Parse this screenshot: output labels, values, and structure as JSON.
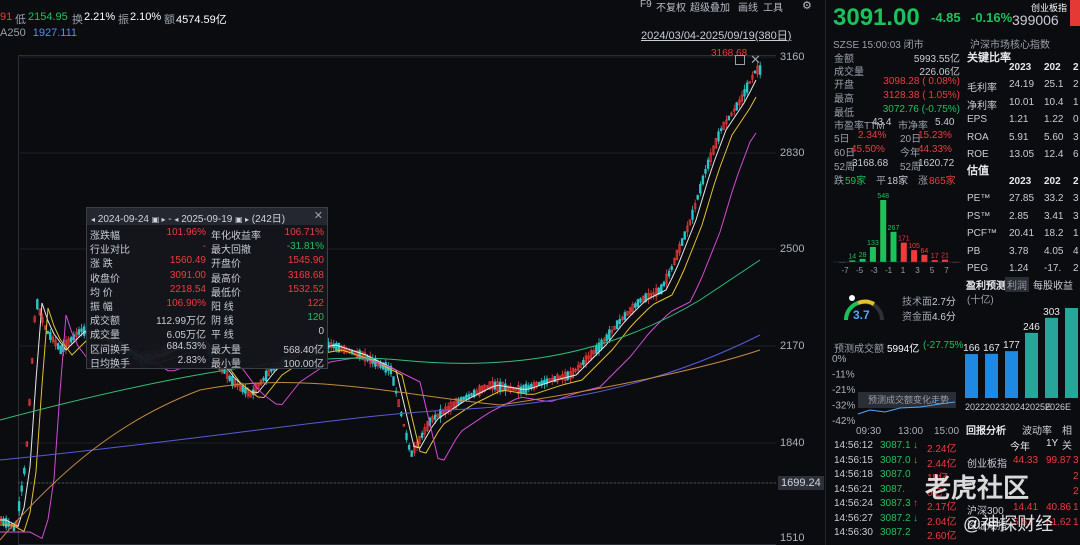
{
  "top": {
    "prefix": "91",
    "low_label": "低",
    "low_value": "2154.95",
    "turnover_label": "换",
    "turnover_value": "2.21%",
    "amplitude_label": "振",
    "amplitude_value": "2.10%",
    "amount_label": "额",
    "amount_value": "4574.59亿",
    "ma_label": "A250",
    "ma_value": "1927.111",
    "range_text": "2024/03/04-2025/09/19(380日)",
    "toolbar": [
      "F9",
      "不复权",
      "超级叠加",
      "画线",
      "工具"
    ]
  },
  "chart": {
    "y_ticks": [
      "3160",
      "2830",
      "2500",
      "2170",
      "1840",
      "1510"
    ],
    "crosshair_value": "1699.24",
    "max_label": "3168.68",
    "colors": {
      "up": "#f23a3a",
      "down": "#19c25a",
      "ma1": "#e8e8e8",
      "ma2": "#e6c229",
      "ma3": "#d64ad6",
      "ma4": "#2fbf7a",
      "ma5": "#5a5ad8"
    }
  },
  "popup": {
    "start_date": "2024-09-24",
    "end_date": "2025-09-19",
    "days": "(242日)",
    "rows": [
      {
        "l1": "涨跌幅",
        "v1": "101.96%",
        "l2": "年化收益率",
        "v2": "106.71%"
      },
      {
        "l1": "行业对比",
        "v1": "-",
        "l2": "最大回撤",
        "v2": "-31.81%"
      },
      {
        "l1": "涨    跌",
        "v1": "1560.49",
        "l2": "开盘价",
        "v2": "1545.90"
      },
      {
        "l1": "收盘价",
        "v1": "3091.00",
        "l2": "最高价",
        "v2": "3168.68"
      },
      {
        "l1": "均    价",
        "v1": "2218.54",
        "l2": "最低价",
        "v2": "1532.52"
      },
      {
        "l1": "振    幅",
        "v1": "106.90%",
        "l2": "阳    线",
        "v2": "122"
      },
      {
        "l1": "成交额",
        "v1": "112.99万亿",
        "l2": "阴    线",
        "v2": "120"
      },
      {
        "l1": "成交量",
        "v1": "6.05万亿",
        "l2": "平    线",
        "v2": "0"
      },
      {
        "l1": "区间换手",
        "v1": "684.53%",
        "l2": "最大量",
        "v2": "568.40亿"
      },
      {
        "l1": "日均换手",
        "v1": "2.83%",
        "l2": "最小量",
        "v2": "100.00亿"
      }
    ]
  },
  "quote": {
    "price": "3091.00",
    "change": "-4.85",
    "change_pct": "-0.16%",
    "board": "创业板指",
    "code": "399006",
    "exchange_time": "SZSE 15:00:03 闭市",
    "index_tag": "沪深市场核心指数",
    "amount_label": "金额",
    "amount": "5993.55亿",
    "volume_label": "成交量",
    "volume": "226.06亿",
    "open_label": "开盘",
    "open": "3098.28 ( 0.08%)",
    "high_label": "最高",
    "high": "3128.38 ( 1.05%)",
    "low_label": "最低",
    "low": "3072.76 (-0.75%)",
    "pe_label": "市盈率TTM",
    "pe": "43.4",
    "pb_label": "市净率",
    "pb": "5.40",
    "d5_label": "5日",
    "d5": "2.34%",
    "d20_label": "20日",
    "d20": "15.23%",
    "d60_label": "60日",
    "d60": "45.50%",
    "ytd_label": "今年",
    "ytd": "44.33%",
    "w52h_label": "52周",
    "w52h": "3168.68",
    "w52l_label": "52周",
    "w52l": "1620.72",
    "down_label": "跌",
    "down": "59家",
    "flat_label": "平",
    "flat": "18家",
    "up_label": "涨",
    "up": "865家"
  },
  "key_ratios": {
    "title": "关键比率",
    "years": [
      "2023",
      "202",
      "2"
    ],
    "rows": [
      {
        "name": "毛利率",
        "v": [
          "24.19",
          "25.1",
          "2"
        ]
      },
      {
        "name": "净利率",
        "v": [
          "10.01",
          "10.4",
          "1"
        ]
      },
      {
        "name": "EPS",
        "v": [
          "1.21",
          "1.22",
          "0"
        ]
      },
      {
        "name": "ROA",
        "v": [
          "5.91",
          "5.60",
          "3"
        ]
      },
      {
        "name": "ROE",
        "v": [
          "13.05",
          "12.4",
          "6"
        ]
      }
    ]
  },
  "valuation": {
    "title": "估值",
    "years": [
      "2023",
      "202",
      "2"
    ],
    "rows": [
      {
        "name": "PE™",
        "v": [
          "27.85",
          "33.2",
          "3"
        ]
      },
      {
        "name": "PS™",
        "v": [
          "2.85",
          "3.41",
          "3"
        ]
      },
      {
        "name": "PCF™",
        "v": [
          "20.41",
          "18.2",
          "1"
        ]
      },
      {
        "name": "PB",
        "v": [
          "3.78",
          "4.05",
          "4"
        ]
      },
      {
        "name": "PEG",
        "v": [
          "1.24",
          "-17.",
          "2"
        ]
      }
    ]
  },
  "distribution": {
    "bars": [
      {
        "label": "-7",
        "value": 0,
        "color": "#19c25a"
      },
      {
        "label": "",
        "value": 14,
        "color": "#19c25a"
      },
      {
        "label": "-5",
        "value": 28,
        "color": "#19c25a"
      },
      {
        "label": "",
        "value": 133,
        "color": "#19c25a"
      },
      {
        "label": "-3",
        "value": 548,
        "color": "#19c25a"
      },
      {
        "label": "-1",
        "value": 267,
        "color": "#19c25a"
      },
      {
        "label": "0",
        "value": 171,
        "color": "#f23a3a"
      },
      {
        "label": "1",
        "value": 105,
        "color": "#f23a3a"
      },
      {
        "label": "3",
        "value": 64,
        "color": "#f23a3a"
      },
      {
        "label": "5",
        "value": 17,
        "color": "#f23a3a"
      },
      {
        "label": "7",
        "value": 21,
        "color": "#f23a3a"
      },
      {
        "label": "",
        "value": 0,
        "color": "#f23a3a"
      }
    ],
    "x_labels": [
      "-7",
      "-5",
      "-3",
      "-1",
      "1",
      "3",
      "5",
      "7"
    ]
  },
  "tech": {
    "score": "3.7",
    "tech_label": "技术面",
    "tech_value": "2.7分",
    "fund_label": "资金面",
    "fund_value": "4.6分"
  },
  "earnings": {
    "title": "盈利预测",
    "tab": "每股收益",
    "unit": "(十亿)",
    "tab_prefix": "利润",
    "values": [
      "166",
      "167",
      "177",
      "246",
      "303",
      ""
    ],
    "years": [
      "2022",
      "2023",
      "2024",
      "2025E",
      "2026E",
      ""
    ],
    "colors": [
      "#1e88e5",
      "#1e88e5",
      "#1e88e5",
      "#26a69a",
      "#26a69a",
      "#26a69a"
    ]
  },
  "returns": {
    "title": "回报分析",
    "tabs": [
      "波动率",
      "相关"
    ],
    "cols": [
      "今年",
      "1Y"
    ],
    "rows": [
      {
        "name": "创业板指",
        "v": [
          "44.33",
          "99.87",
          "3"
        ]
      },
      {
        "name": "",
        "v": [
          "",
          "",
          "2"
        ]
      },
      {
        "name": "",
        "v": [
          "",
          "",
          "2"
        ]
      },
      {
        "name": "沪深300",
        "v": [
          "14.41",
          "40.86",
          "1"
        ]
      },
      {
        "name": "深证成指",
        "v": [
          "5.51",
          "61.62",
          "1"
        ]
      }
    ]
  },
  "forecast": {
    "label": "预测成交额",
    "value": "5994亿",
    "change": "(-27.75%",
    "pct_ticks": [
      "0%",
      "-11%",
      "-21%",
      "-32%",
      "-42%"
    ],
    "chart_title": "预测成交额变化走势",
    "times": [
      "09:30",
      "13:00",
      "15:00"
    ]
  },
  "ticks": {
    "rows": [
      {
        "time": "14:56:12",
        "price": "3087.1",
        "dir": "↓",
        "vol": "2.24亿"
      },
      {
        "time": "14:56:15",
        "price": "3087.0",
        "dir": "↓",
        "vol": "2.44亿"
      },
      {
        "time": "14:56:18",
        "price": "3087.0",
        "dir": "",
        "vol": "15亿"
      },
      {
        "time": "14:56:21",
        "price": "3087.",
        "dir": "",
        "vol": "0亿"
      },
      {
        "time": "14:56:24",
        "price": "3087.3",
        "dir": "↑",
        "vol": "2.17亿"
      },
      {
        "time": "14:56:27",
        "price": "3087.2",
        "dir": "↓",
        "vol": "2.04亿"
      },
      {
        "time": "14:56:30",
        "price": "3087.2",
        "dir": "",
        "vol": "2.60亿"
      }
    ]
  },
  "watermark": {
    "text": "老虎社区",
    "sub": "@神探财经"
  }
}
